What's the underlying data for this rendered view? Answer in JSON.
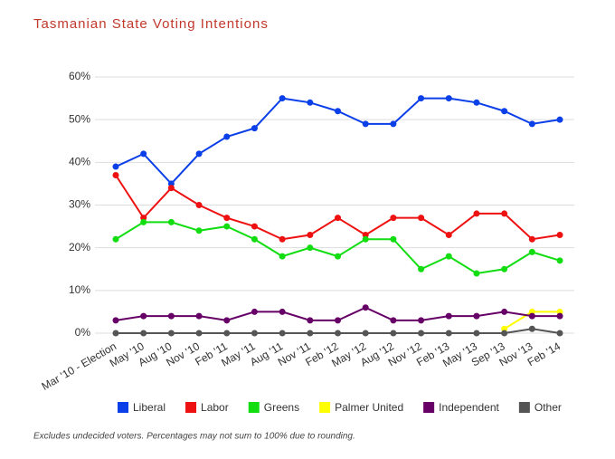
{
  "chart_data": {
    "type": "line",
    "title": "Tasmanian State Voting Intentions",
    "note": "Excludes undecided voters. Percentages may not sum to 100% due to rounding.",
    "categories": [
      "Mar '10 - Election",
      "May '10",
      "Aug '10",
      "Nov '10",
      "Feb '11",
      "May '11",
      "Aug '11",
      "Nov '11",
      "Feb '12",
      "May '12",
      "Aug '12",
      "Nov '12",
      "Feb '13",
      "May '13",
      "Sep '13",
      "Nov '13",
      "Feb '14"
    ],
    "series": [
      {
        "name": "Liberal",
        "color": "#0b3fe8",
        "values": [
          39,
          42,
          35,
          42,
          46,
          48,
          55,
          54,
          52,
          49,
          49,
          55,
          55,
          54,
          52,
          49,
          50
        ]
      },
      {
        "name": "Labor",
        "color": "#ee1111",
        "values": [
          37,
          27,
          34,
          30,
          27,
          25,
          22,
          23,
          27,
          23,
          27,
          27,
          23,
          28,
          28,
          22,
          23
        ]
      },
      {
        "name": "Greens",
        "color": "#11dd11",
        "values": [
          22,
          26,
          26,
          24,
          25,
          22,
          18,
          20,
          18,
          22,
          22,
          15,
          18,
          14,
          15,
          19,
          17
        ]
      },
      {
        "name": "Palmer United",
        "color": "#ffff00",
        "values": [
          null,
          null,
          null,
          null,
          null,
          null,
          null,
          null,
          null,
          null,
          null,
          null,
          null,
          null,
          1,
          5,
          5
        ]
      },
      {
        "name": "Independent",
        "color": "#660066",
        "values": [
          3,
          4,
          4,
          4,
          3,
          5,
          5,
          3,
          3,
          6,
          3,
          3,
          4,
          4,
          5,
          4,
          4
        ]
      },
      {
        "name": "Other",
        "color": "#555555",
        "values": [
          0,
          0,
          0,
          0,
          0,
          0,
          0,
          0,
          0,
          0,
          0,
          0,
          0,
          0,
          0,
          1,
          0
        ]
      }
    ],
    "ylim": [
      0,
      60
    ],
    "yticks": [
      {
        "value": 0,
        "label": "0%"
      },
      {
        "value": 10,
        "label": "10%"
      },
      {
        "value": 20,
        "label": "20%"
      },
      {
        "value": 30,
        "label": "30%"
      },
      {
        "value": 40,
        "label": "40%"
      },
      {
        "value": 50,
        "label": "50%"
      },
      {
        "value": 60,
        "label": "60%"
      }
    ],
    "grid": true
  }
}
